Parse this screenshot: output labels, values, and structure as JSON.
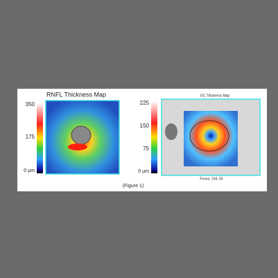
{
  "figure": {
    "left": {
      "title": "RNFL Thickness Map",
      "scale": [
        "350",
        "175",
        "0 µm"
      ]
    },
    "right": {
      "title": "GC Thickness Map",
      "scale": [
        "225",
        "150",
        "75",
        "0 µm"
      ],
      "note": "Fovea: 104, 55"
    },
    "caption": "(Figure 1)"
  }
}
